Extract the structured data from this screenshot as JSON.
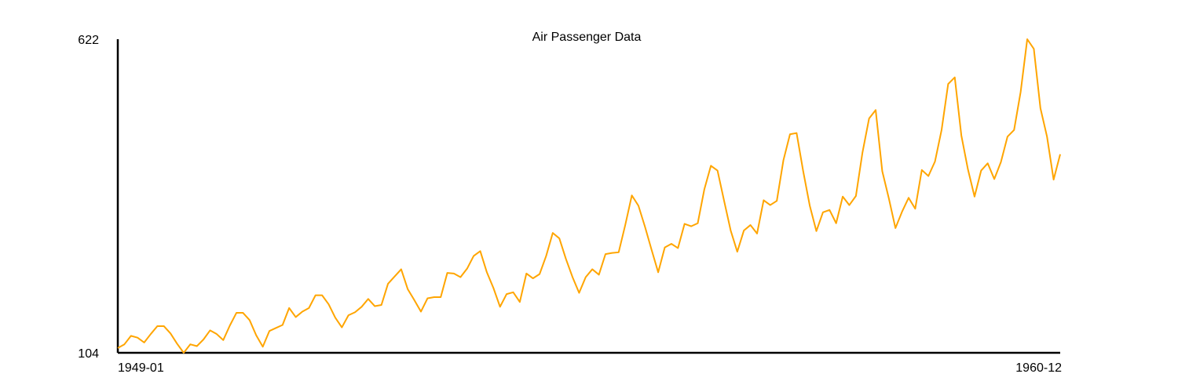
{
  "chart_data": {
    "type": "line",
    "title": "Air Passenger Data",
    "xlabel": "",
    "ylabel": "",
    "x_start": "1949-01",
    "x_end": "1960-12",
    "x_tick_labels": [
      "1949-01",
      "1960-12"
    ],
    "y_tick_labels": [
      "104",
      "622"
    ],
    "ylim": [
      104,
      622
    ],
    "grid": false,
    "legend": "none",
    "line_color": "#FFA500",
    "series": [
      {
        "values": [
          112,
          118,
          132,
          129,
          121,
          135,
          148,
          148,
          136,
          119,
          104,
          118,
          115,
          126,
          141,
          135,
          125,
          149,
          170,
          170,
          158,
          133,
          114,
          140,
          145,
          150,
          178,
          163,
          172,
          178,
          199,
          199,
          184,
          162,
          146,
          166,
          171,
          180,
          193,
          181,
          183,
          218,
          230,
          242,
          209,
          191,
          172,
          194,
          196,
          196,
          236,
          235,
          229,
          243,
          264,
          272,
          237,
          211,
          180,
          201,
          204,
          188,
          235,
          227,
          234,
          264,
          302,
          293,
          259,
          229,
          203,
          229,
          242,
          233,
          267,
          269,
          270,
          315,
          364,
          347,
          312,
          274,
          237,
          278,
          284,
          277,
          317,
          313,
          318,
          374,
          413,
          405,
          355,
          306,
          271,
          306,
          315,
          301,
          356,
          348,
          355,
          422,
          465,
          467,
          404,
          347,
          305,
          336,
          340,
          318,
          362,
          348,
          363,
          435,
          491,
          505,
          404,
          359,
          310,
          337,
          360,
          342,
          406,
          396,
          420,
          472,
          548,
          559,
          463,
          407,
          362,
          405,
          417,
          391,
          419,
          461,
          472,
          535,
          622,
          606,
          508,
          461,
          390,
          432
        ]
      }
    ]
  }
}
